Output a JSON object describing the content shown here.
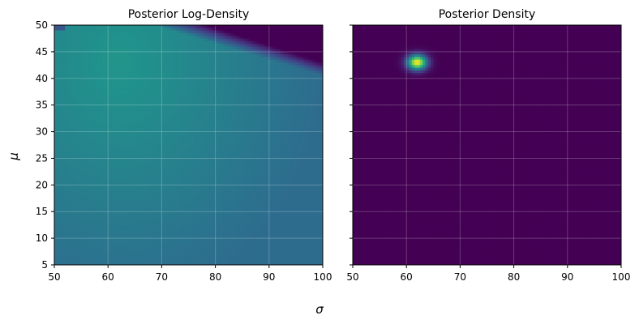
{
  "chart_data": [
    {
      "type": "heatmap",
      "title": "Posterior Log-Density",
      "xlabel": "σ",
      "ylabel": "μ",
      "xlim": [
        50,
        100
      ],
      "ylim": [
        5,
        50
      ],
      "xticks": [
        50,
        60,
        70,
        80,
        90,
        100
      ],
      "yticks": [
        5,
        10,
        15,
        20,
        25,
        30,
        35,
        40,
        45,
        50
      ],
      "colormap": "viridis",
      "grid": true,
      "mode": "log",
      "peak": {
        "x": 62,
        "y": 43
      }
    },
    {
      "type": "heatmap",
      "title": "Posterior Density",
      "xlim": [
        50,
        100
      ],
      "ylim": [
        5,
        50
      ],
      "xticks": [
        50,
        60,
        70,
        80,
        90,
        100
      ],
      "yticks": [
        5,
        10,
        15,
        20,
        25,
        30,
        35,
        40,
        45,
        50
      ],
      "show_ytick_labels": false,
      "colormap": "viridis",
      "grid": true,
      "mode": "linear",
      "peak": {
        "x": 62,
        "y": 43
      }
    }
  ],
  "colors": {
    "viridis_low": "#440154",
    "viridis_mid": "#21918c",
    "viridis_high": "#fde725",
    "grid": "#ffffff"
  }
}
